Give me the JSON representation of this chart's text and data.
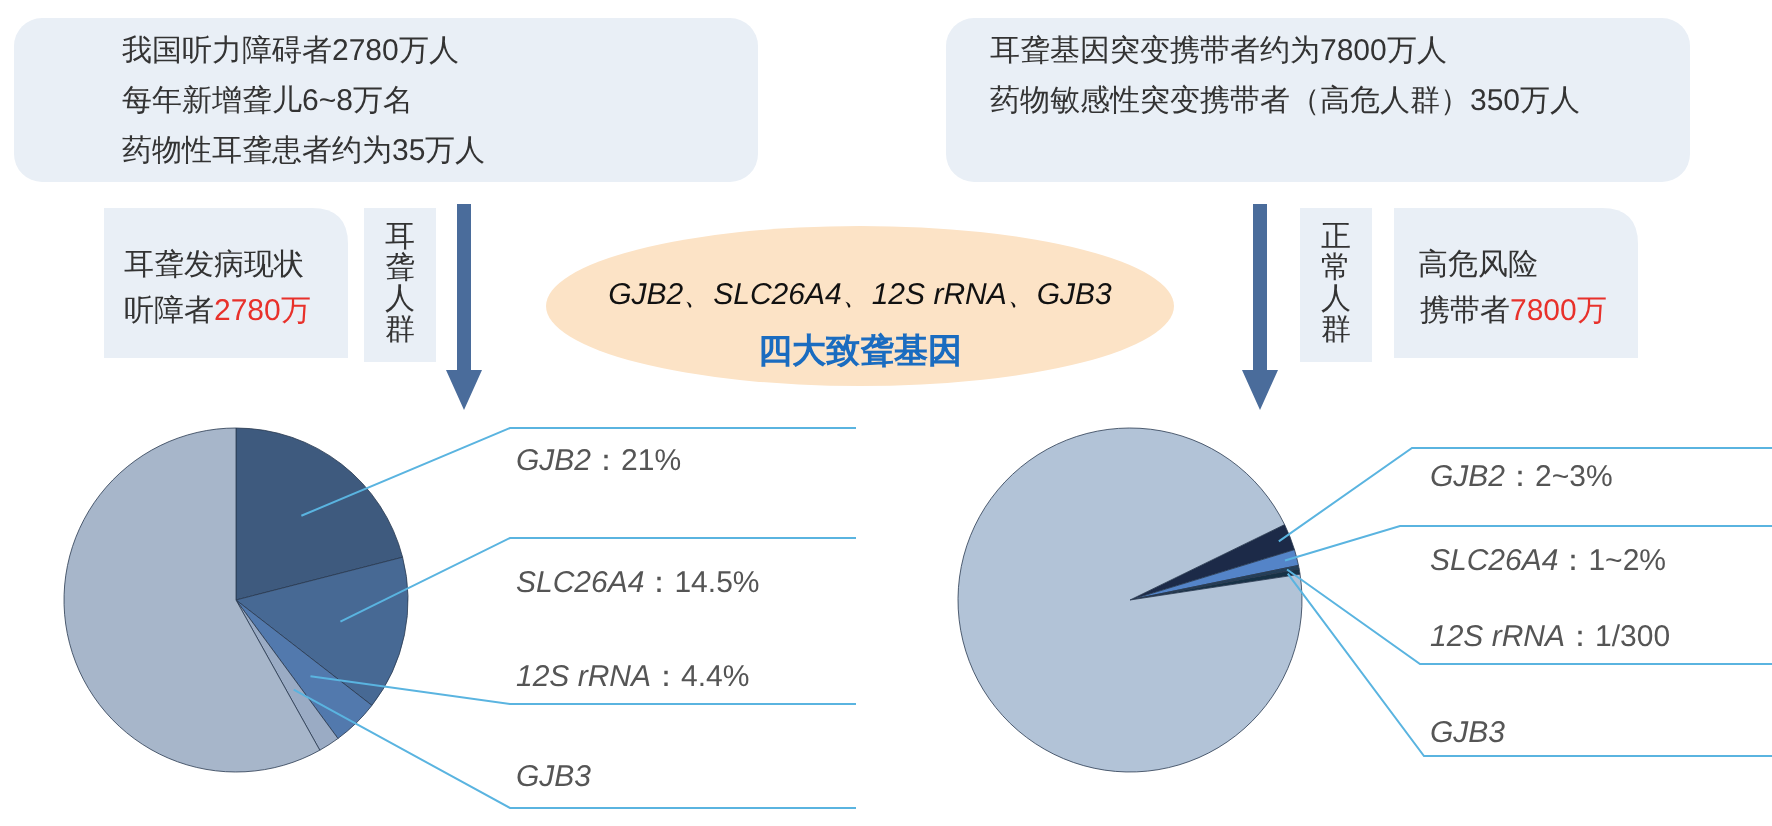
{
  "chart_data": [
    {
      "type": "pie",
      "annotations": [
        "我国听力障碍者2780万人",
        "每年新增聋儿6~8万名",
        "药物性耳聋患者约为35万人",
        "耳聋发病现状",
        "听障者",
        "2780万",
        "耳聋人群"
      ],
      "categories": [
        "GJB2",
        "SLC26A4",
        "12S rRNA",
        "GJB3",
        null
      ],
      "values": [
        21,
        14.5,
        4.4,
        2,
        58.1
      ],
      "value_labels": [
        "：21%",
        "：14.5%",
        "：4.4%",
        null,
        null
      ],
      "colors": [
        "#3e5a7e",
        "#476994",
        "#5279ad",
        "#9aabc4",
        "#a7b6ca"
      ]
    },
    {
      "type": "other",
      "title": "GJB2、SLC26A4、12S rRNA、GJB3",
      "subtitle": "四大致聋基因"
    },
    {
      "type": "pie",
      "annotations": [
        "耳聋基因突变携带者约为7800万人",
        "药物敏感性突变携带者（高危人群）350万人",
        "正常人群",
        "高危风险",
        "携带者",
        "7800万"
      ],
      "categories": [
        "GJB2",
        "SLC26A4",
        "12S rRNA",
        "GJB3",
        null
      ],
      "values": [
        2.5,
        1.5,
        0.33,
        0.5,
        95.17
      ],
      "value_labels": [
        "：2~3%",
        "：1~2%",
        "：1/300",
        null,
        null
      ],
      "colors": [
        "#1c2a48",
        "#5484c8",
        "#24405a",
        "#173246",
        "#b2c3d7"
      ]
    }
  ]
}
